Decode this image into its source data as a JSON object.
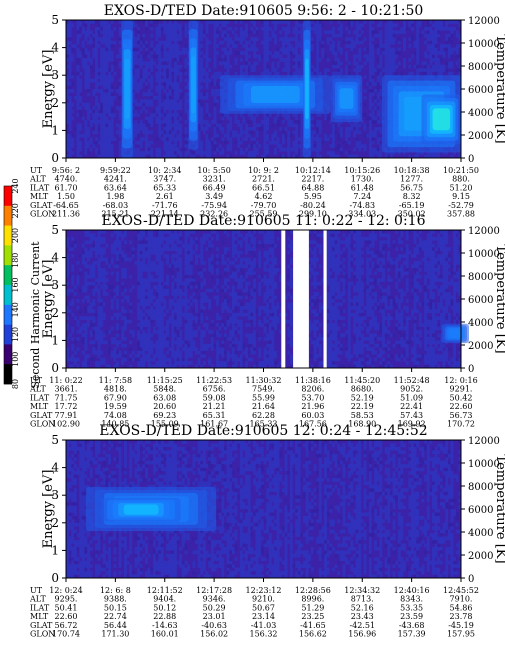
{
  "chart_data": [
    {
      "type": "heatmap",
      "title": "EXOS-D/TED   Date:910605  9:56: 2 - 10:21:50",
      "ylabel": "Energy [eV]",
      "ylabel_right": "Temperature [K]",
      "ylim": [
        0,
        5
      ],
      "y_ticks": [
        "0",
        "1",
        "2",
        "3",
        "4",
        "5"
      ],
      "y2lim": [
        0,
        12000
      ],
      "y2_ticks": [
        "0",
        "2000",
        "4000",
        "6000",
        "8000",
        "10000",
        "12000"
      ],
      "ephemeris": {
        "labels": [
          "UT",
          "ALT",
          "ILAT",
          "MLT",
          "GLAT",
          "GLON"
        ],
        "columns": [
          [
            "9:56: 2",
            "4740.",
            "61.70",
            "1.50",
            "-64.65",
            "211.36"
          ],
          [
            "9:59:22",
            "4241.",
            "63.64",
            "1.98",
            "-68.03",
            "215.21"
          ],
          [
            "10: 2:34",
            "3747.",
            "65.33",
            "2.61",
            "-71.76",
            "221.14"
          ],
          [
            "10: 5:50",
            "3231.",
            "66.49",
            "3.49",
            "-75.94",
            "232.26"
          ],
          [
            "10: 9: 2",
            "2721.",
            "66.51",
            "4.62",
            "-79.70",
            "255.59"
          ],
          [
            "10:12:14",
            "2217.",
            "64.88",
            "5.95",
            "-80.24",
            "299.10"
          ],
          [
            "10:15:26",
            "1730.",
            "61.48",
            "7.24",
            "-74.83",
            "334.03"
          ],
          [
            "10:18:38",
            "1277.",
            "56.75",
            "8.32",
            "-65.19",
            "350.02"
          ],
          [
            "10:21:50",
            "880.",
            "51.20",
            "9.15",
            "-52.79",
            "357.88"
          ]
        ]
      },
      "features": [
        {
          "x": 0.14,
          "w": 0.03,
          "emin": 0,
          "emax": 5,
          "level": 0.55
        },
        {
          "x": 0.31,
          "w": 0.025,
          "emin": 0.3,
          "emax": 5,
          "level": 0.5
        },
        {
          "x": 0.39,
          "w": 0.28,
          "emin": 1.6,
          "emax": 3.0,
          "level": 0.45
        },
        {
          "x": 0.6,
          "w": 0.02,
          "emin": 0,
          "emax": 5,
          "level": 0.6
        },
        {
          "x": 0.67,
          "w": 0.08,
          "emin": 1.3,
          "emax": 3.0,
          "level": 0.4
        },
        {
          "x": 0.8,
          "w": 0.2,
          "emin": 0.2,
          "emax": 3.0,
          "level": 0.55
        },
        {
          "x": 0.9,
          "w": 0.1,
          "emin": 0.5,
          "emax": 2.3,
          "level": 0.9
        }
      ]
    },
    {
      "type": "heatmap",
      "title": "EXOS-D/TED   Date:910605  11: 0:22 - 12: 0:16",
      "ylabel": "Energy [eV]",
      "ylabel_right": "Temperature [K]",
      "ylim": [
        0,
        5
      ],
      "y_ticks": [
        "0",
        "1",
        "2",
        "3",
        "4",
        "5"
      ],
      "y2lim": [
        0,
        12000
      ],
      "y2_ticks": [
        "0",
        "2000",
        "4000",
        "6000",
        "8000",
        "10000",
        "12000"
      ],
      "ephemeris": {
        "labels": [
          "UT",
          "ALT",
          "ILAT",
          "MLT",
          "GLAT",
          "GLON"
        ],
        "columns": [
          [
            "11: 0:22",
            "3661.",
            "71.75",
            "17.72",
            "77.91",
            "102.90"
          ],
          [
            "11: 7:58",
            "4818.",
            "67.90",
            "19.59",
            "74.08",
            "140.85"
          ],
          [
            "11:15:25",
            "5848.",
            "63.08",
            "20.60",
            "69.23",
            "155.09"
          ],
          [
            "11:22:53",
            "6756.",
            "59.08",
            "21.21",
            "65.31",
            "161.67"
          ],
          [
            "11:30:32",
            "7549.",
            "55.99",
            "21.64",
            "62.28",
            "165.33"
          ],
          [
            "11:38:16",
            "8206.",
            "53.70",
            "21.96",
            "60.03",
            "167.56"
          ],
          [
            "11:45:20",
            "8680.",
            "52.19",
            "22.19",
            "58.53",
            "168.90"
          ],
          [
            "11:52:48",
            "9052.",
            "51.09",
            "22.41",
            "57.43",
            "169.92"
          ],
          [
            "12: 0:16",
            "9291.",
            "50.42",
            "22.60",
            "56.73",
            "170.72"
          ]
        ]
      },
      "gaps": [
        [
          0.545,
          0.555
        ],
        [
          0.575,
          0.615
        ],
        [
          0.652,
          0.66
        ]
      ],
      "features": [
        {
          "x": 0.95,
          "w": 0.07,
          "emin": 0.9,
          "emax": 1.6,
          "level": 0.35
        }
      ]
    },
    {
      "type": "heatmap",
      "title": "EXOS-D/TED   Date:910605  12: 0:24 - 12:45:52",
      "ylabel": "Energy [eV]",
      "ylabel_right": "Temperature [K]",
      "ylim": [
        0,
        5
      ],
      "y_ticks": [
        "0",
        "1",
        "2",
        "3",
        "4",
        "5"
      ],
      "y2lim": [
        0,
        12000
      ],
      "y2_ticks": [
        "0",
        "2000",
        "4000",
        "6000",
        "8000",
        "10000",
        "12000"
      ],
      "ephemeris": {
        "labels": [
          "UT",
          "ALT",
          "ILAT",
          "MLT",
          "GLAT",
          "GLON"
        ],
        "columns": [
          [
            "12: 0:24",
            "9295.",
            "50.41",
            "22.60",
            "56.72",
            "170.74"
          ],
          [
            "12: 6: 8",
            "9388.",
            "50.15",
            "22.74",
            "56.44",
            "171.30"
          ],
          [
            "12:11:52",
            "9404.",
            "50.12",
            "22.88",
            "-14.63",
            "160.01"
          ],
          [
            "12:17:28",
            "9346.",
            "50.29",
            "23.01",
            "-40.63",
            "156.02"
          ],
          [
            "12:23:12",
            "9210.",
            "50.67",
            "23.14",
            "-41.03",
            "156.32"
          ],
          [
            "12:28:56",
            "8996.",
            "51.29",
            "23.25",
            "-41.65",
            "156.62"
          ],
          [
            "12:34:32",
            "8713.",
            "52.16",
            "23.43",
            "-42.51",
            "156.96"
          ],
          [
            "12:40:16",
            "8343.",
            "53.35",
            "23.59",
            "-43.68",
            "157.39"
          ],
          [
            "12:45:52",
            "7910.",
            "54.86",
            "23.78",
            "-45.19",
            "157.95"
          ]
        ]
      },
      "features": [
        {
          "x": 0.05,
          "w": 0.33,
          "emin": 1.7,
          "emax": 3.3,
          "level": 0.35
        },
        {
          "x": 0.09,
          "w": 0.2,
          "emin": 2.05,
          "emax": 2.9,
          "level": 0.6
        }
      ]
    }
  ],
  "colorbar": {
    "label": "Second Harmonic Current",
    "ticks": [
      "80",
      "100",
      "120",
      "140",
      "160",
      "180",
      "200",
      "220",
      "240"
    ],
    "colors": [
      "#000000",
      "#3a0070",
      "#2040d8",
      "#1e78ff",
      "#00c0d0",
      "#00c060",
      "#a0e000",
      "#ffe000",
      "#ff8000",
      "#ff0000"
    ]
  }
}
